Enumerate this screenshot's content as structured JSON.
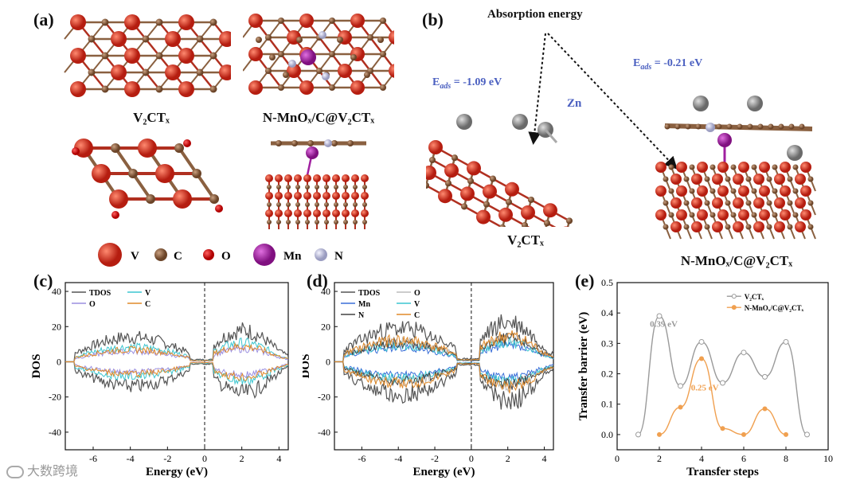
{
  "panels": {
    "a": {
      "label": "(a)",
      "cap1": "V₂CTₓ",
      "cap2": "N-MnOₓ/C@V₂CTₓ",
      "legend": [
        "V",
        "C",
        "O",
        "Mn",
        "N"
      ]
    },
    "b": {
      "label": "(b)",
      "title": "Absorption energy",
      "eads1": "E_ads = -1.09 eV",
      "eads2": "E_ads = -0.21 eV",
      "zn": "Zn",
      "cap1": "V₂CTₓ",
      "cap2": "N-MnOₓ/C@V₂CTₓ"
    },
    "c": {
      "label": "(c)"
    },
    "d": {
      "label": "(d)"
    },
    "e": {
      "label": "(e)"
    }
  },
  "colors": {
    "V": "#cc2a1a",
    "C": "#8a6040",
    "O": "#d11010",
    "Mn": "#a020a0",
    "N": "#b8bcd8",
    "Zn": "#909090",
    "eads": "#4a5fc0"
  },
  "chart_data": [
    {
      "type": "line",
      "panel": "(c)",
      "xlabel": "Energy (eV)",
      "ylabel": "DOS",
      "xlim": [
        -7.5,
        4.5
      ],
      "ylim": [
        -50,
        45
      ],
      "xticks": [
        -6,
        -4,
        -2,
        0,
        2,
        4
      ],
      "yticks": [
        -40,
        -20,
        0,
        20,
        40
      ],
      "fermi_level": 0,
      "series": [
        {
          "name": "TDOS",
          "color": "#555555"
        },
        {
          "name": "V",
          "color": "#3cc6d0"
        },
        {
          "name": "O",
          "color": "#9b8fe0"
        },
        {
          "name": "C",
          "color": "#e08a2a"
        }
      ],
      "approx_peaks": {
        "occupied_max": 20,
        "unoccupied_max": 23
      }
    },
    {
      "type": "line",
      "panel": "(d)",
      "xlabel": "Energy (eV)",
      "ylabel": "DOS",
      "xlim": [
        -7.5,
        4.5
      ],
      "ylim": [
        -50,
        45
      ],
      "xticks": [
        -6,
        -4,
        -2,
        0,
        2,
        4
      ],
      "yticks": [
        -40,
        -20,
        0,
        20,
        40
      ],
      "fermi_level": 0,
      "series": [
        {
          "name": "TDOS",
          "color": "#555555"
        },
        {
          "name": "O",
          "color": "#bbbbbb"
        },
        {
          "name": "Mn",
          "color": "#3a6ed8"
        },
        {
          "name": "V",
          "color": "#3cc6d0"
        },
        {
          "name": "N",
          "color": "#444444"
        },
        {
          "name": "C",
          "color": "#e08a2a"
        }
      ],
      "approx_peaks": {
        "occupied_max": 27,
        "unoccupied_max": 29
      }
    },
    {
      "type": "line",
      "panel": "(e)",
      "xlabel": "Transfer steps",
      "ylabel": "Transfer barrier (eV)",
      "xlim": [
        0,
        10
      ],
      "ylim": [
        -0.05,
        0.5
      ],
      "xticks": [
        0,
        2,
        4,
        6,
        8,
        10
      ],
      "yticks": [
        0.0,
        0.1,
        0.2,
        0.3,
        0.4,
        0.5
      ],
      "annotations": [
        "0.39 eV",
        "0.25 eV"
      ],
      "series": [
        {
          "name": "V₂CTₓ",
          "color": "#9a9a9a",
          "x": [
            1,
            2,
            3,
            4,
            5,
            6,
            7,
            8,
            9
          ],
          "y": [
            0.0,
            0.39,
            0.16,
            0.305,
            0.17,
            0.27,
            0.19,
            0.305,
            0.0
          ]
        },
        {
          "name": "N-MnOₓ/C@V₂CTₓ",
          "color": "#f0a050",
          "x": [
            2,
            3,
            4,
            5,
            6,
            7,
            8
          ],
          "y": [
            0.0,
            0.09,
            0.25,
            0.02,
            0.0,
            0.085,
            0.0
          ]
        }
      ]
    }
  ],
  "watermark": "大数跨境"
}
